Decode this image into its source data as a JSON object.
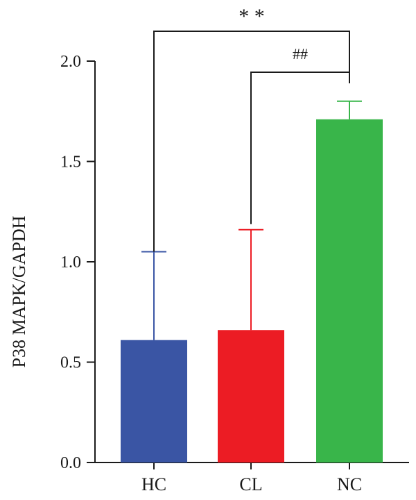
{
  "chart_data": {
    "type": "bar",
    "categories": [
      "HC",
      "CL",
      "NC"
    ],
    "values": [
      0.61,
      0.66,
      1.71
    ],
    "errors": [
      0.44,
      0.5,
      0.09
    ],
    "colors": [
      "#3a55a4",
      "#ec1c24",
      "#39b54a"
    ],
    "ylabel": "P38 MAPK/GAPDH",
    "ylim": [
      0,
      2.0
    ],
    "yticks": [
      "0.0",
      "0.5",
      "1.0",
      "1.5",
      "2.0"
    ],
    "annotations": [
      {
        "label": "* *",
        "from": "HC",
        "to": "NC",
        "y": 2.15
      },
      {
        "label": "##",
        "from": "CL",
        "to": "NC",
        "y": 1.95
      }
    ],
    "grid": false,
    "legend": "none"
  }
}
